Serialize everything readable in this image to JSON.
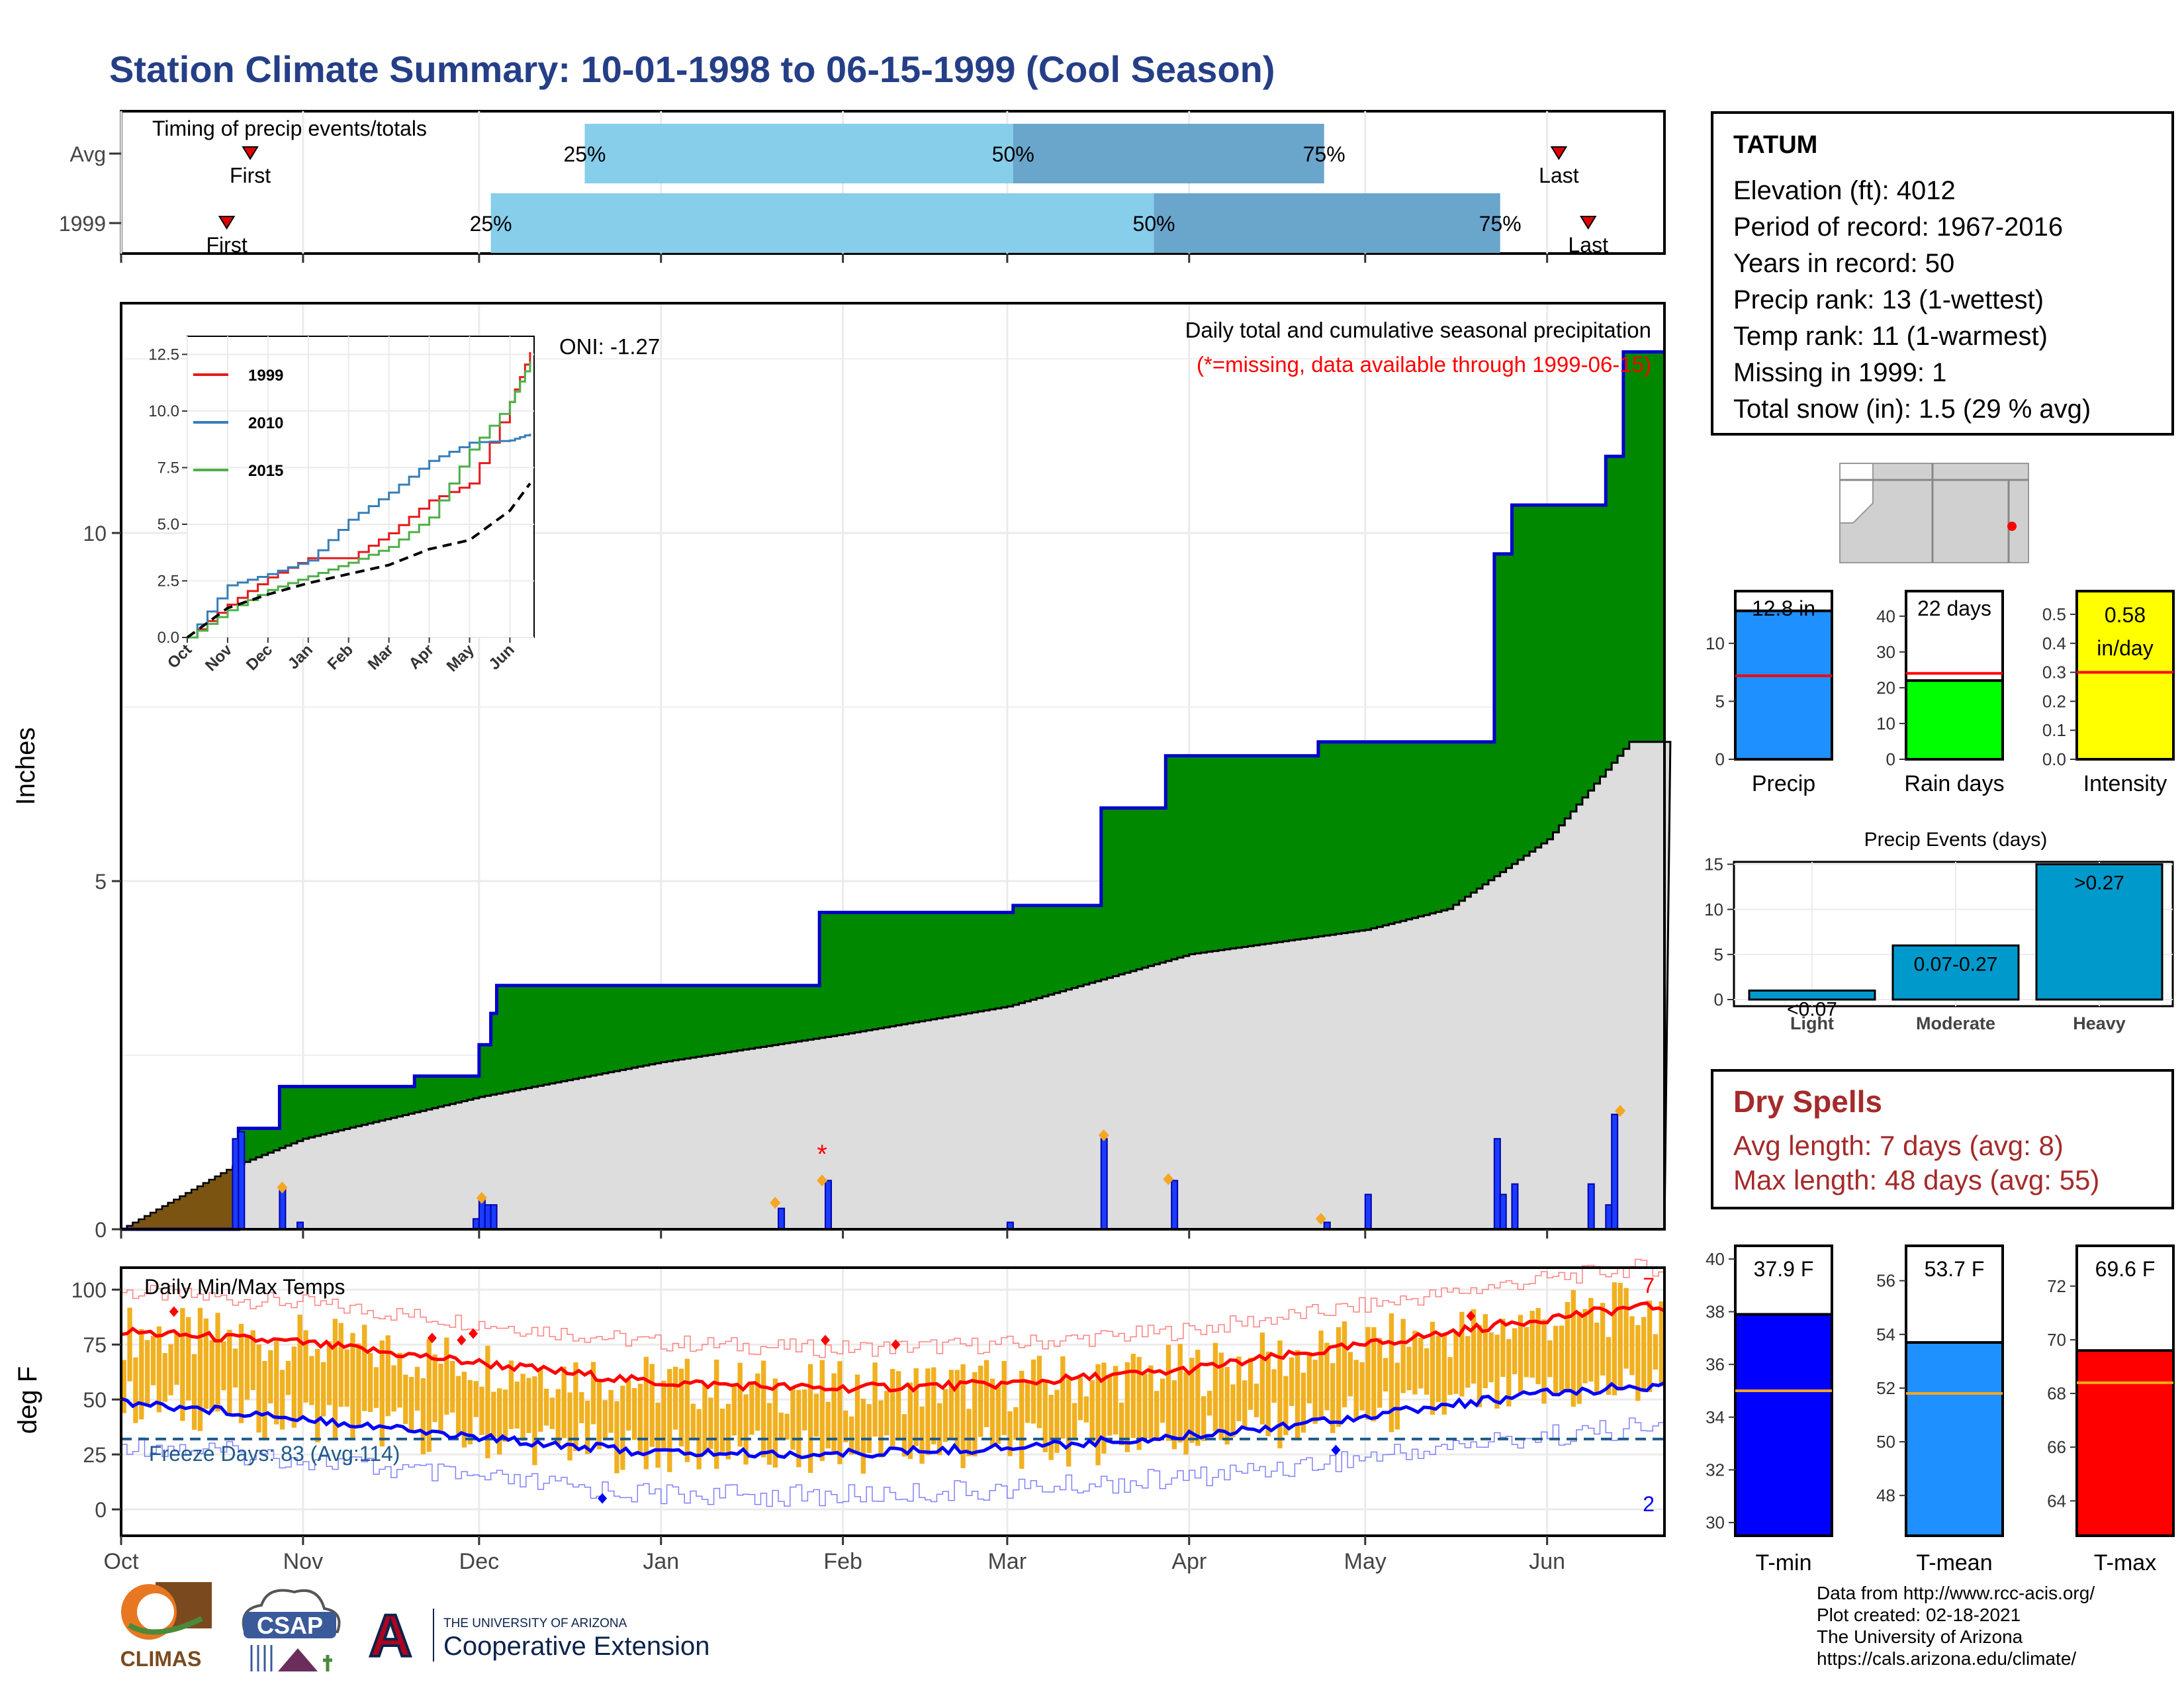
{
  "title": "Station Climate Summary: 10-01-1998 to 06-15-1999 (Cool Season)",
  "colors": {
    "title": "#253f87",
    "cumulative_fill": "#008800",
    "cumulative_line": "#0000cc",
    "avg_fill": "#dddddd",
    "early_fill": "#7b5412",
    "daily_bar": "#1a3cff",
    "quartile_light": "#87ceeb",
    "quartile_dark": "#6aa5cc",
    "temp_bar": "#f0b020",
    "tmax_line": "#ff0000",
    "tmin_line": "#0000ff",
    "dry_spell_text": "#a52a2a"
  },
  "timing": {
    "title": "Timing of precip events/totals",
    "rows": [
      {
        "label": "Avg",
        "first_label": "First",
        "last_label": "Last",
        "q25": "25%",
        "q50": "50%",
        "q75": "75%",
        "first_day": 22,
        "q25_day": 79,
        "q50_day": 152,
        "q75_day": 205,
        "last_day": 245
      },
      {
        "label": "1999",
        "first_label": "First",
        "last_label": "Last",
        "q25": "25%",
        "q50": "50%",
        "q75": "75%",
        "first_day": 18,
        "q25_day": 63,
        "q50_day": 176,
        "q75_day": 235,
        "last_day": 250
      }
    ]
  },
  "main_panel": {
    "ylabel": "Inches",
    "oni": "ONI: -1.27",
    "caption": "Daily total and cumulative seasonal precipitation",
    "caption2": "(*=missing, data available through 1999-06-15)",
    "yticks": [
      "0",
      "5",
      "10"
    ],
    "months": [
      "Oct",
      "Nov",
      "Dec",
      "Jan",
      "Feb",
      "Mar",
      "Apr",
      "May",
      "Jun"
    ]
  },
  "chart_data": [
    {
      "type": "area",
      "name": "cumulative seasonal precipitation",
      "ylabel": "Inches",
      "ylim": [
        0,
        13.3
      ],
      "series": [
        {
          "name": "1999",
          "x": [
            "1998-10-01",
            "1998-10-20",
            "1998-10-21",
            "1998-10-27",
            "1998-10-28",
            "1998-11-20",
            "1998-12-01",
            "1998-12-03",
            "1998-12-04",
            "1999-01-20",
            "1999-01-28",
            "1999-03-02",
            "1999-03-17",
            "1999-03-28",
            "1999-04-23",
            "1999-05-14",
            "1999-05-23",
            "1999-05-26",
            "1999-05-28",
            "1999-06-11",
            "1999-06-14",
            "1999-06-15"
          ],
          "values": [
            0,
            0,
            1.45,
            1.45,
            2.05,
            2.2,
            2.65,
            3.1,
            3.5,
            3.5,
            4.55,
            4.65,
            6.05,
            6.8,
            7.0,
            7.0,
            9.7,
            10.4,
            10.4,
            11.1,
            12.6,
            12.6
          ]
        },
        {
          "name": "average",
          "x": [
            "1998-10-01",
            "1998-10-20",
            "1998-11-01",
            "1998-12-01",
            "1999-01-01",
            "1999-02-01",
            "1999-03-01",
            "1999-04-01",
            "1999-05-01",
            "1999-05-15",
            "1999-06-01",
            "1999-06-15"
          ],
          "values": [
            0,
            0.9,
            1.3,
            1.9,
            2.4,
            2.8,
            3.2,
            3.95,
            4.3,
            4.6,
            5.6,
            7.0
          ]
        }
      ],
      "daily_precip": {
        "dates": [
          "1998-10-20",
          "1998-10-21",
          "1998-10-28",
          "1998-10-31",
          "1998-11-30",
          "1998-12-01",
          "1998-12-02",
          "1998-12-03",
          "1999-01-21",
          "1999-01-29",
          "1999-03-01",
          "1999-03-17",
          "1999-03-29",
          "1999-04-24",
          "1999-05-01",
          "1999-05-23",
          "1999-05-24",
          "1999-05-26",
          "1999-06-08",
          "1999-06-11",
          "1999-06-12"
        ],
        "values": [
          1.3,
          1.4,
          0.6,
          0.1,
          0.15,
          0.45,
          0.35,
          0.35,
          0.3,
          0.7,
          0.1,
          1.3,
          0.7,
          0.1,
          0.5,
          1.3,
          0.5,
          0.65,
          0.65,
          0.35,
          1.65
        ]
      },
      "missing_marker": "*",
      "grid": true
    },
    {
      "type": "line",
      "name": "inset",
      "xticks": [
        "Oct",
        "Nov",
        "Dec",
        "Jan",
        "Feb",
        "Mar",
        "Apr",
        "May",
        "Jun"
      ],
      "yticks": [
        "0.0",
        "2.5",
        "5.0",
        "7.5",
        "10.0",
        "12.5"
      ],
      "ylim": [
        0,
        13.3
      ],
      "legend": "top-left",
      "series": [
        {
          "name": "1999",
          "color": "#e41a1c",
          "x": [
            0,
            1,
            2,
            3,
            4,
            5,
            6,
            7,
            8,
            8.5
          ],
          "values": [
            0,
            1.45,
            2.65,
            3.5,
            3.5,
            4.6,
            6.05,
            6.8,
            10.4,
            12.6
          ]
        },
        {
          "name": "2010",
          "color": "#377eb8",
          "x": [
            0,
            1,
            2,
            3,
            4,
            5,
            6,
            7,
            8,
            8.5
          ],
          "values": [
            0,
            2.3,
            2.8,
            3.4,
            5.2,
            6.4,
            7.8,
            8.6,
            8.7,
            9.0
          ]
        },
        {
          "name": "2015",
          "color": "#4daf4a",
          "x": [
            0,
            1,
            2,
            3,
            4,
            5,
            6,
            7,
            8,
            8.5
          ],
          "values": [
            0,
            1.2,
            2.1,
            2.7,
            3.3,
            4.0,
            5.3,
            8.3,
            10.4,
            12.2
          ]
        },
        {
          "name": "",
          "color": "#000000",
          "dash": true,
          "x": [
            0,
            1,
            2,
            3,
            4,
            5,
            6,
            7,
            8,
            8.5
          ],
          "values": [
            0,
            1.3,
            1.9,
            2.4,
            2.8,
            3.2,
            3.9,
            4.3,
            5.6,
            6.8
          ]
        }
      ]
    },
    {
      "type": "bar",
      "name": "precip totals",
      "categories": [
        "Precip",
        "Rain days",
        "Intensity"
      ],
      "values": [
        12.8,
        22,
        0.58
      ],
      "averages": [
        7.2,
        24,
        0.3
      ],
      "labels": [
        "12.8 in",
        "22 days",
        "0.58 in/day"
      ],
      "ylims": [
        [
          0,
          14.5
        ],
        [
          0,
          47
        ],
        [
          0,
          0.58
        ]
      ],
      "yticks": [
        [
          "0",
          "5",
          "10"
        ],
        [
          "0",
          "10",
          "20",
          "30",
          "40"
        ],
        [
          "0.0",
          "0.1",
          "0.2",
          "0.3",
          "0.4",
          "0.5"
        ]
      ],
      "colors": [
        "#1e90ff",
        "#00ff00",
        "#ffff00"
      ]
    },
    {
      "type": "bar",
      "name": "Precip Events (days)",
      "title": "Precip Events (days)",
      "categories": [
        "Light",
        "Moderate",
        "Heavy"
      ],
      "values": [
        1,
        6,
        15
      ],
      "bar_labels": [
        "<0.07",
        "0.07-0.27",
        ">0.27"
      ],
      "yticks": [
        "0",
        "5",
        "10",
        "15"
      ],
      "ylim": [
        0,
        16
      ]
    },
    {
      "type": "bar",
      "name": "daily min/max temps",
      "ylabel": "deg F",
      "ylim": [
        -12,
        110
      ],
      "yticks": [
        "0",
        "25",
        "50",
        "75",
        "100"
      ],
      "freeze_line": 32,
      "tmax_avg": {
        "x": [
          0,
          30,
          60,
          90,
          120,
          150,
          180,
          210,
          240,
          258
        ],
        "values": [
          81,
          76,
          67,
          58,
          55,
          57,
          63,
          74,
          86,
          92
        ]
      },
      "tmin_avg": {
        "x": [
          0,
          30,
          60,
          90,
          120,
          150,
          180,
          210,
          240,
          258
        ],
        "values": [
          49,
          42,
          33,
          26,
          25,
          28,
          33,
          42,
          52,
          56
        ]
      },
      "record_high_count": "7",
      "record_low_count": "2"
    },
    {
      "type": "bar",
      "name": "temperature means",
      "categories": [
        "T-min",
        "T-mean",
        "T-max"
      ],
      "values": [
        37.9,
        53.7,
        69.6
      ],
      "averages": [
        35.0,
        51.8,
        68.4
      ],
      "labels": [
        "37.9 F",
        "53.7 F",
        "69.6 F"
      ],
      "ylims": [
        [
          29.5,
          40.5
        ],
        [
          46.5,
          57.3
        ],
        [
          62.7,
          73.5
        ]
      ],
      "yticks": [
        [
          "30",
          "32",
          "34",
          "36",
          "38",
          "40"
        ],
        [
          "48",
          "50",
          "52",
          "54",
          "56"
        ],
        [
          "64",
          "66",
          "68",
          "70",
          "72"
        ]
      ],
      "colors": [
        "#0000ff",
        "#1e90ff",
        "#ff0000"
      ]
    }
  ],
  "temp_panel": {
    "title": "Daily Min/Max Temps",
    "freeze": "Freeze Days: 83 (Avg:114)",
    "high_count": "7",
    "low_count": "2"
  },
  "station": {
    "name": "TATUM",
    "lines": [
      "Elevation (ft): 4012",
      "Period of record: 1967-2016",
      "Years in record: 50",
      "Precip rank: 13 (1-wettest)",
      "Temp rank: 11 (1-warmest)",
      "Missing in 1999: 1",
      "Total snow (in): 1.5 (29 % avg)"
    ]
  },
  "dry_spells": {
    "title": "Dry Spells",
    "avg": "Avg length: 7 days (avg: 8)",
    "max": "Max length: 48 days (avg: 55)"
  },
  "footer": [
    "Data from http://www.rcc-acis.org/",
    "Plot created: 02-18-2021",
    "The University of Arizona",
    "https://cals.arizona.edu/climate/"
  ],
  "logos": {
    "climas": "CLIMAS",
    "csap": "CSAP",
    "ua_small": "THE UNIVERSITY OF ARIZONA",
    "ua_big": "Cooperative Extension",
    "ua_letter": "A"
  }
}
